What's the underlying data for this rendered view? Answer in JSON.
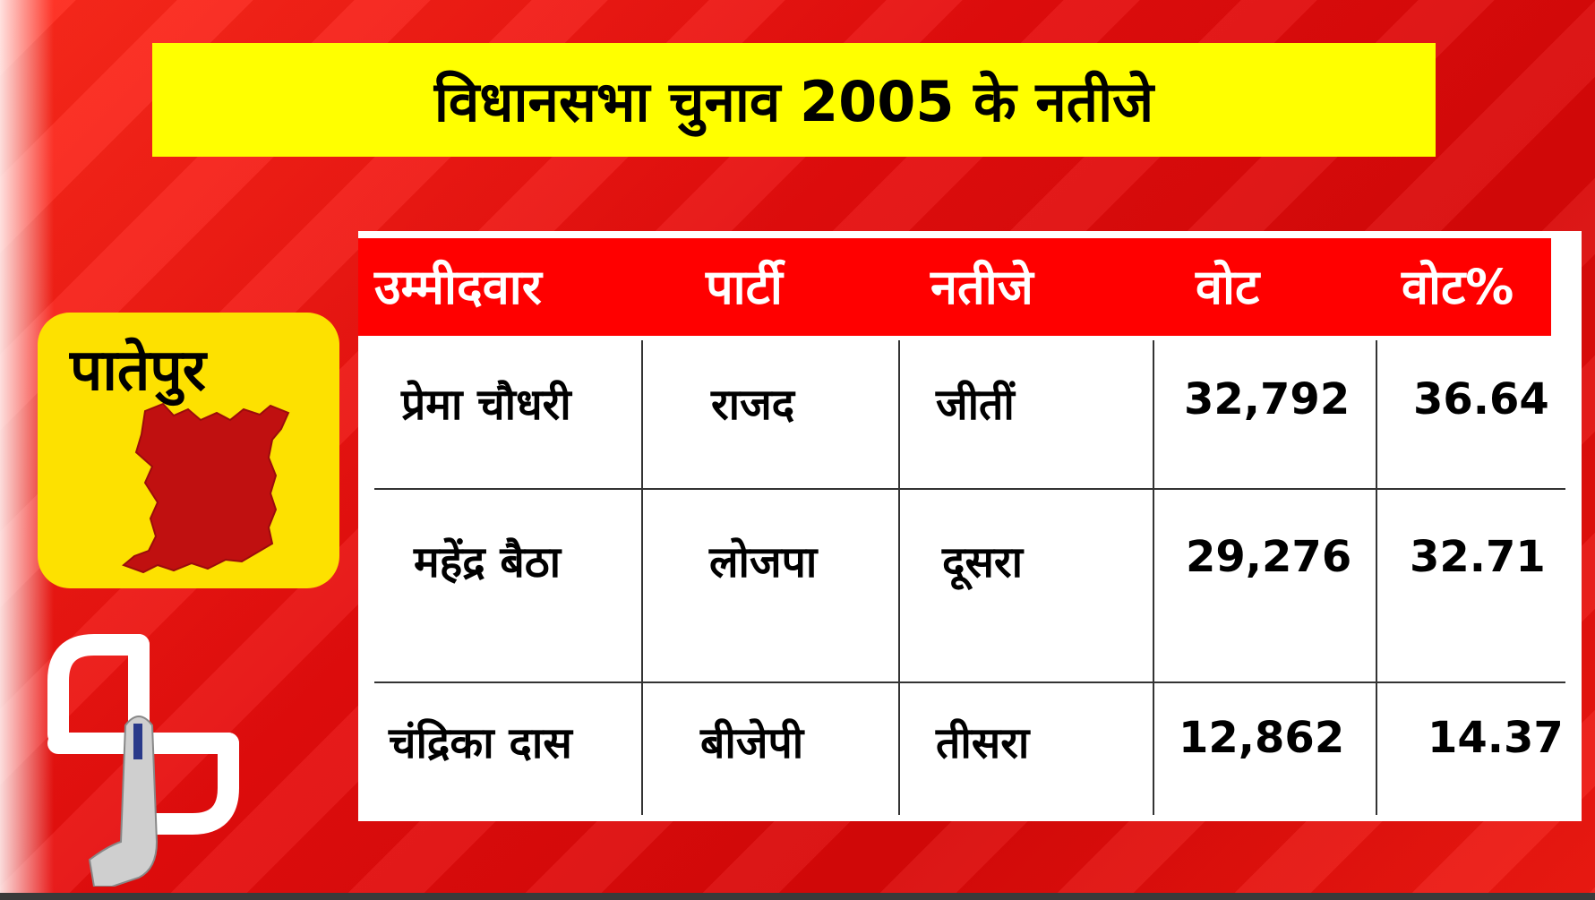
{
  "title": "विधानसभा चुनाव 2005 के नतीजे",
  "constituency": "पातेपुर",
  "icons": {
    "map": "constituency-map-icon",
    "symbol": "election-commission-symbol-icon"
  },
  "colors": {
    "background": "#e81010",
    "banner": "#ffff00",
    "card": "#fde100",
    "header": "#ff0000",
    "map": "#c01010"
  },
  "table": {
    "headers": [
      "उम्मीदवार",
      "पार्टी",
      "नतीजे",
      "वोट",
      "वोट%"
    ],
    "rows": [
      {
        "candidate": "प्रेमा चौधरी",
        "party": "राजद",
        "result": "जीतीं",
        "votes": "32,792",
        "vote_pct": "36.64"
      },
      {
        "candidate": "महेंद्र बैठा",
        "party": "लोजपा",
        "result": "दूसरा",
        "votes": "29,276",
        "vote_pct": "32.71"
      },
      {
        "candidate": "चंद्रिका दास",
        "party": "बीजेपी",
        "result": "तीसरा",
        "votes": "12,862",
        "vote_pct": "14.37"
      }
    ]
  }
}
